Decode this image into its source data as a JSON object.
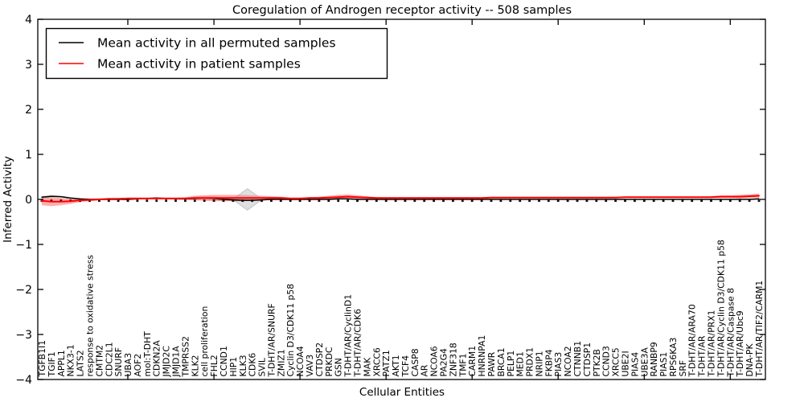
{
  "title_text": "Coregulation of Androgen receptor activity -- 508 samples",
  "legend": {
    "items": [
      {
        "label": "Mean activity in all permuted samples",
        "color": "#000000"
      },
      {
        "label": "Mean activity in patient samples",
        "color": "#ff0000"
      }
    ]
  },
  "colors": {
    "permuted_line": "#000000",
    "patient_line": "#ff0000",
    "patient_band": "#ff0000",
    "gray_band": "#888888",
    "diamond_fill": "#aaaaaa",
    "diamond_edge": "#999999",
    "zero_dots": "#111111",
    "axis": "#000000"
  },
  "chart_data": {
    "type": "line",
    "title": "Coregulation of Androgen receptor activity -- 508 samples",
    "xlabel": "Cellular Entities",
    "ylabel": "Inferred Activity",
    "ylim": [
      -4,
      4
    ],
    "yticks": [
      4,
      3,
      2,
      1,
      0,
      -1,
      -2,
      -3,
      -4
    ],
    "ytick_labels": [
      "4",
      "3",
      "2",
      "1",
      "0",
      "−1",
      "−2",
      "−3",
      "−4"
    ],
    "grid": false,
    "legend_position": "upper-left",
    "zero_line_style": "dotted",
    "categories": [
      "TGFB1I1",
      "TGIF1",
      "APPL1",
      "NKX3-1",
      "LATS2",
      "response to oxidative stress",
      "CMTM2",
      "CDC2L1",
      "SNURF",
      "UBA3",
      "AOF2",
      "mol:T-DHT",
      "CDKN2A",
      "JMJD2C",
      "JMJD1A",
      "TMPRSS2",
      "KLK2",
      "cell proliferation",
      "FHL2",
      "CCND1",
      "HIP1",
      "KLK3",
      "CDK6",
      "SVIL",
      "T-DHT/AR/SNURF",
      "ZMIZ1",
      "Cyclin D3/CDK11 p58",
      "NCOA4",
      "VAV3",
      "CTDSP2",
      "PRKDC",
      "GSN",
      "T-DHT/AR/CyclinD1",
      "T-DHT/AR/CDK6",
      "MAK",
      "XRCC6",
      "PATZ1",
      "AKT1",
      "TCF4",
      "CASP8",
      "AR",
      "NCOA6",
      "PA2G4",
      "ZNF318",
      "TMF1",
      "CARM1",
      "HNRNPA1",
      "PAWR",
      "BRCA1",
      "PELP1",
      "MED1",
      "PRDX1",
      "NRIP1",
      "FKBP4",
      "PIAS3",
      "NCOA2",
      "CTNNB1",
      "CTDSP1",
      "PTK2B",
      "CCND3",
      "XRCC5",
      "UBE2I",
      "PIAS4",
      "UBE3A",
      "RANBP9",
      "PIAS1",
      "RPS6KA3",
      "SRF",
      "T-DHT/AR/ARA70",
      "T-DHT/AR",
      "T-DHT/AR/PRX1",
      "T-DHT/AR/Cyclin D3/CDK11 p58",
      "T-DHT/AR/Caspase 8",
      "T-DHT/AR/Ubc9",
      "DNA-PK",
      "T-DHT/AR/TIF2/CARM1"
    ],
    "series": [
      {
        "name": "Mean activity in all permuted samples",
        "color": "#000000",
        "values": [
          0.05,
          0.07,
          0.06,
          0.03,
          0.01,
          0,
          0,
          0,
          0,
          0,
          0.01,
          0.02,
          0.03,
          0.02,
          0.01,
          0.01,
          0.02,
          0.03,
          0.02,
          0,
          -0.01,
          -0.02,
          -0.02,
          -0.01,
          0,
          0,
          0,
          0,
          0,
          0,
          0,
          0.01,
          0.01,
          0,
          0,
          0,
          0,
          0,
          0,
          0,
          0,
          0,
          0,
          0,
          0,
          0,
          0,
          0,
          0,
          0,
          0,
          0,
          0,
          0,
          0,
          0,
          0,
          0,
          0,
          0,
          0,
          0,
          0,
          0,
          0,
          0,
          0,
          0,
          0,
          0,
          0,
          0,
          0,
          0,
          0,
          0.01
        ],
        "band_halfwidth": [
          0.03,
          0.03,
          0.02,
          0.01,
          0.01,
          0.01,
          0.01,
          0.01,
          0.01,
          0.01,
          0.01,
          0.01,
          0.01,
          0.01,
          0.01,
          0.01,
          0.04,
          0.05,
          0.05,
          0.04,
          0.03,
          0.02,
          0.02,
          0.01,
          0.01,
          0.01,
          0.01,
          0.01,
          0.01,
          0.01,
          0.01,
          0.01,
          0.01,
          0.01,
          0.01,
          0.01,
          0.01,
          0.01,
          0.01,
          0.01,
          0.01,
          0.01,
          0.01,
          0.01,
          0.01,
          0.01,
          0.01,
          0.01,
          0.01,
          0.01,
          0.01,
          0.01,
          0.01,
          0.01,
          0.01,
          0.01,
          0.01,
          0.01,
          0.01,
          0.01,
          0.01,
          0.01,
          0.01,
          0.01,
          0.01,
          0.01,
          0.01,
          0.01,
          0.01,
          0.01,
          0.01,
          0.01,
          0.01,
          0.01,
          0.01,
          0.02
        ]
      },
      {
        "name": "Mean activity in patient samples",
        "color": "#ff0000",
        "values": [
          -0.03,
          -0.05,
          -0.05,
          -0.04,
          -0.02,
          -0.01,
          0,
          0.01,
          0.01,
          0.02,
          0.02,
          0.02,
          0.02,
          0.02,
          0.02,
          0.02,
          0.03,
          0.03,
          0.03,
          0.03,
          0.03,
          0.03,
          0.03,
          0.03,
          0.03,
          0.03,
          0.02,
          0.02,
          0.03,
          0.03,
          0.04,
          0.05,
          0.06,
          0.05,
          0.04,
          0.03,
          0.03,
          0.03,
          0.03,
          0.03,
          0.03,
          0.03,
          0.03,
          0.03,
          0.03,
          0.03,
          0.03,
          0.04,
          0.04,
          0.04,
          0.04,
          0.04,
          0.04,
          0.04,
          0.04,
          0.04,
          0.04,
          0.04,
          0.04,
          0.04,
          0.04,
          0.05,
          0.05,
          0.05,
          0.05,
          0.05,
          0.05,
          0.05,
          0.05,
          0.05,
          0.05,
          0.06,
          0.06,
          0.06,
          0.07,
          0.08
        ],
        "band_halfwidth": [
          0.1,
          0.1,
          0.08,
          0.06,
          0.04,
          0.03,
          0.02,
          0.02,
          0.02,
          0.02,
          0.02,
          0.02,
          0.02,
          0.02,
          0.02,
          0.03,
          0.05,
          0.06,
          0.07,
          0.07,
          0.07,
          0.07,
          0.06,
          0.05,
          0.04,
          0.03,
          0.02,
          0.02,
          0.02,
          0.03,
          0.04,
          0.05,
          0.05,
          0.04,
          0.03,
          0.02,
          0.015,
          0.015,
          0.015,
          0.015,
          0.015,
          0.015,
          0.015,
          0.015,
          0.015,
          0.015,
          0.015,
          0.015,
          0.015,
          0.015,
          0.015,
          0.015,
          0.015,
          0.015,
          0.015,
          0.015,
          0.015,
          0.015,
          0.015,
          0.015,
          0.015,
          0.015,
          0.015,
          0.015,
          0.015,
          0.015,
          0.015,
          0.015,
          0.015,
          0.015,
          0.02,
          0.03,
          0.03,
          0.04,
          0.04,
          0.05
        ]
      }
    ],
    "gray_diamond": {
      "center_index": 21.5,
      "half_width_indices": 1.55,
      "half_height_value": 0.24
    },
    "top_tick_indices": [
      9,
      18,
      27,
      36,
      45,
      54,
      63,
      72
    ]
  }
}
